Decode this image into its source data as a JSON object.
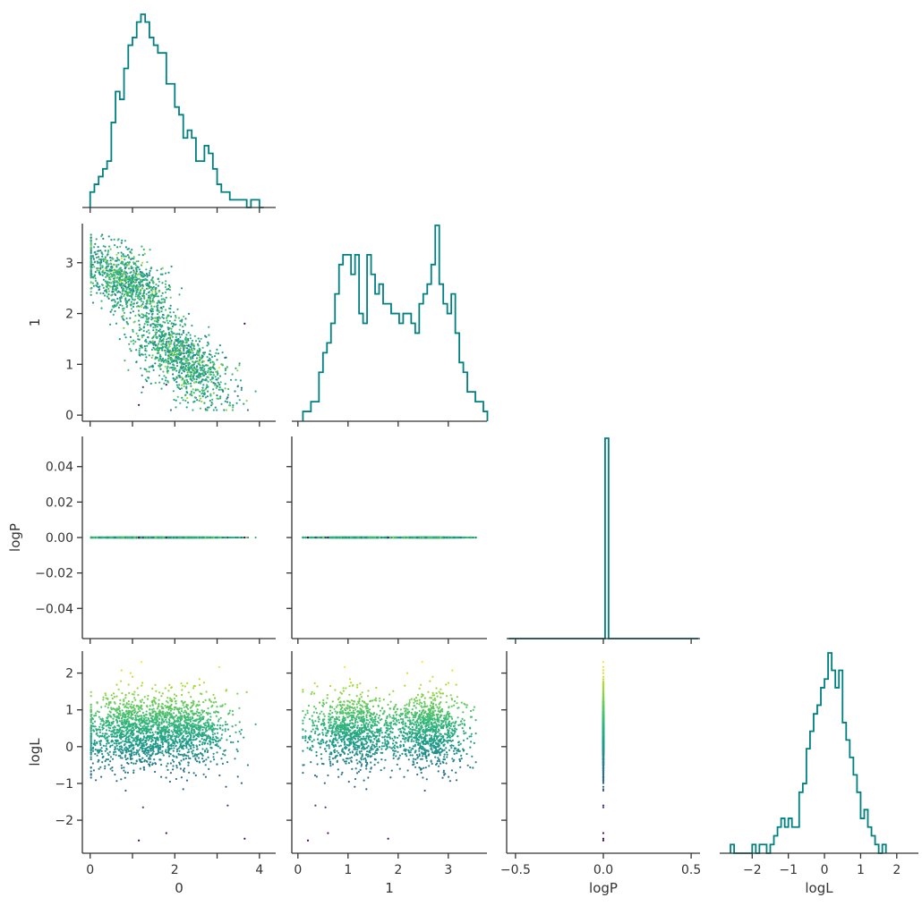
{
  "colors": {
    "hist": "#008080",
    "axis": "#333333",
    "colormap": [
      "#440154",
      "#3b528b",
      "#21918c",
      "#5ec962",
      "#fde725"
    ]
  },
  "chart_data": {
    "type": "scatter",
    "kind": "corner-plot",
    "variables": [
      "0",
      "1",
      "logP",
      "logL"
    ],
    "axis_labels": {
      "0": "0",
      "1": "1",
      "logP": "logP",
      "logL": "logL"
    },
    "ranges": {
      "0": [
        -0.1,
        4.3
      ],
      "1": [
        -0.05,
        3.7
      ],
      "logP": [
        -0.055,
        0.055
      ],
      "logL": [
        -2.8,
        2.5
      ]
    },
    "x_ranges": {
      "logP": [
        -0.53,
        0.53
      ]
    },
    "ticks": {
      "0": [
        {
          "v": 0,
          "label": "0"
        },
        {
          "v": 1,
          "label": ""
        },
        {
          "v": 2,
          "label": "2"
        },
        {
          "v": 3,
          "label": ""
        },
        {
          "v": 4,
          "label": "4"
        }
      ],
      "1": [
        {
          "v": 0,
          "label": "0"
        },
        {
          "v": 1,
          "label": "1"
        },
        {
          "v": 2,
          "label": "2"
        },
        {
          "v": 3,
          "label": "3"
        }
      ],
      "logP_y": [
        {
          "v": -0.04,
          "label": "−0.04"
        },
        {
          "v": -0.02,
          "label": "−0.02"
        },
        {
          "v": 0,
          "label": "0.00"
        },
        {
          "v": 0.02,
          "label": "0.02"
        },
        {
          "v": 0.04,
          "label": "0.04"
        }
      ],
      "logP_x": [
        {
          "v": -0.5,
          "label": "−0.5"
        },
        {
          "v": 0,
          "label": "0.0"
        },
        {
          "v": 0.5,
          "label": "0.5"
        }
      ],
      "logL": [
        {
          "v": -2,
          "label": "−2"
        },
        {
          "v": -1,
          "label": "−1"
        },
        {
          "v": 0,
          "label": "0"
        },
        {
          "v": 1,
          "label": "1"
        },
        {
          "v": 2,
          "label": "2"
        }
      ]
    },
    "color_by": "logL",
    "color_scale": "viridis",
    "color_range": [
      -2.6,
      2.3
    ],
    "histograms": {
      "0": {
        "bin_start": 0.0,
        "bin_width": 0.1,
        "counts": [
          2,
          3,
          4,
          5,
          6,
          11,
          15,
          14,
          18,
          21,
          22,
          24,
          25,
          24,
          22,
          21,
          20,
          20,
          16,
          16,
          13,
          12,
          9,
          10,
          9,
          6,
          6,
          8,
          7,
          5,
          3,
          2,
          2,
          1,
          1,
          1,
          1,
          0,
          1,
          1,
          0
        ]
      },
      "1": {
        "bin_start": 0.1,
        "bin_width": 0.08,
        "counts": [
          1,
          1,
          2,
          2,
          5,
          7,
          8,
          10,
          13,
          16,
          17,
          17,
          15,
          17,
          11,
          10,
          17,
          15,
          13,
          14,
          12,
          12,
          11,
          11,
          10,
          11,
          11,
          10,
          9,
          12,
          13,
          14,
          16,
          20,
          14,
          12,
          11,
          13,
          9,
          6,
          5,
          3,
          3,
          2,
          2,
          1
        ]
      },
      "logP": {
        "bin_start": -0.01,
        "bin_width": 0.02,
        "counts": [
          0,
          120,
          0
        ]
      },
      "logL": {
        "bin_start": -2.6,
        "bin_width": 0.1,
        "counts": [
          1,
          0,
          0,
          0,
          0,
          0,
          1,
          0,
          1,
          1,
          0,
          1,
          2,
          3,
          4,
          3,
          4,
          3,
          3,
          7,
          8,
          12,
          14,
          16,
          17,
          19,
          20,
          23,
          21,
          19,
          21,
          15,
          13,
          11,
          9,
          7,
          4,
          5,
          3,
          2,
          1,
          0,
          1
        ]
      }
    },
    "scatter_points": 2000,
    "highlight_points": [
      {
        "x0": 1.15,
        "x1": 0.2,
        "logL": -2.55
      },
      {
        "x0": 1.8,
        "x1": 0.6,
        "logL": -2.35
      },
      {
        "x0": 3.65,
        "x1": 1.8,
        "logL": -2.5
      },
      {
        "x0": 3.25,
        "x1": 0.35,
        "logL": -1.6
      },
      {
        "x0": 1.25,
        "x1": 0.55,
        "logL": -1.65
      }
    ]
  }
}
